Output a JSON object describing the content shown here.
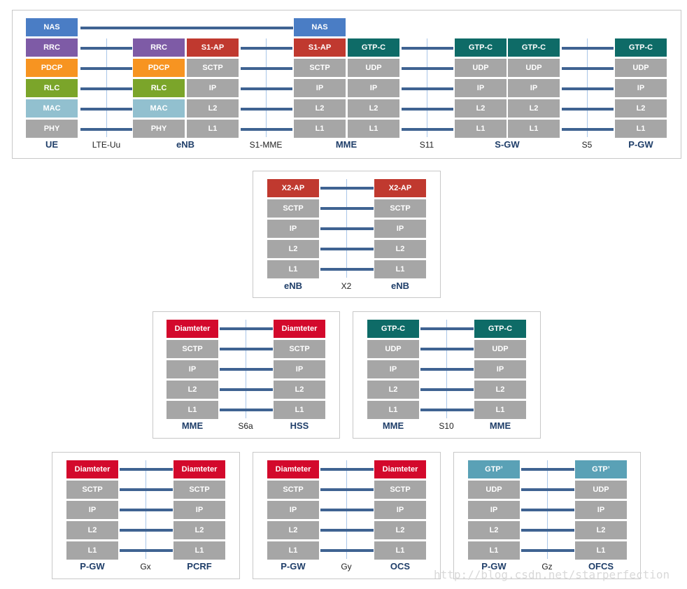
{
  "top": {
    "nodes": {
      "ue": "UE",
      "enb": "eNB",
      "mme": "MME",
      "sgw": "S-GW",
      "pgw": "P-GW"
    },
    "interfaces": {
      "lte_uu": "LTE-Uu",
      "s1_mme": "S1-MME",
      "s11": "S11",
      "s5": "S5"
    },
    "ue_stack": [
      "NAS",
      "RRC",
      "PDCP",
      "RLC",
      "MAC",
      "PHY"
    ],
    "enb_radio_stack": [
      "RRC",
      "PDCP",
      "RLC",
      "MAC",
      "PHY"
    ],
    "enb_s1_stack": [
      "S1-AP",
      "SCTP",
      "IP",
      "L2",
      "L1"
    ],
    "mme_s1_stack": [
      "NAS",
      "S1-AP",
      "SCTP",
      "IP",
      "L2",
      "L1"
    ],
    "mme_gtp_stack": [
      "GTP-C",
      "UDP",
      "IP",
      "L2",
      "L1"
    ],
    "sgw_left_stack": [
      "GTP-C",
      "UDP",
      "IP",
      "L2",
      "L1"
    ],
    "sgw_right_stack": [
      "GTP-C",
      "UDP",
      "IP",
      "L2",
      "L1"
    ],
    "pgw_stack": [
      "GTP-C",
      "UDP",
      "IP",
      "L2",
      "L1"
    ]
  },
  "x2": {
    "left_node": "eNB",
    "right_node": "eNB",
    "interface": "X2",
    "stack": [
      "X2-AP",
      "SCTP",
      "IP",
      "L2",
      "L1"
    ]
  },
  "s6a": {
    "left_node": "MME",
    "right_node": "HSS",
    "interface": "S6a",
    "stack": [
      "Diamteter",
      "SCTP",
      "IP",
      "L2",
      "L1"
    ]
  },
  "s10": {
    "left_node": "MME",
    "right_node": "MME",
    "interface": "S10",
    "stack": [
      "GTP-C",
      "UDP",
      "IP",
      "L2",
      "L1"
    ]
  },
  "gx": {
    "left_node": "P-GW",
    "right_node": "PCRF",
    "interface": "Gx",
    "stack": [
      "Diamteter",
      "SCTP",
      "IP",
      "L2",
      "L1"
    ]
  },
  "gy": {
    "left_node": "P-GW",
    "right_node": "OCS",
    "interface": "Gy",
    "stack": [
      "Diamteter",
      "SCTP",
      "IP",
      "L2",
      "L1"
    ]
  },
  "gz": {
    "left_node": "P-GW",
    "right_node": "OFCS",
    "interface": "Gz",
    "stack": [
      "GTP’",
      "UDP",
      "IP",
      "L2",
      "L1"
    ]
  },
  "watermark": "http://blog.csdn.net/starperfection",
  "colors": {
    "gray": "#a6a6a6",
    "nas_blue": "#4a7dc5",
    "rrc_purple": "#7e5ba6",
    "pdcp_orange": "#f79421",
    "rlc_green": "#7ba52a",
    "mac_lightblue": "#92c0cf",
    "ap_red": "#c0392f",
    "diameter_red": "#d3092c",
    "gtp_teal": "#0e6b67",
    "gtp_prime_blue": "#5aa1b6",
    "link_blue": "#3f6392",
    "node_label": "#1f3e69"
  }
}
